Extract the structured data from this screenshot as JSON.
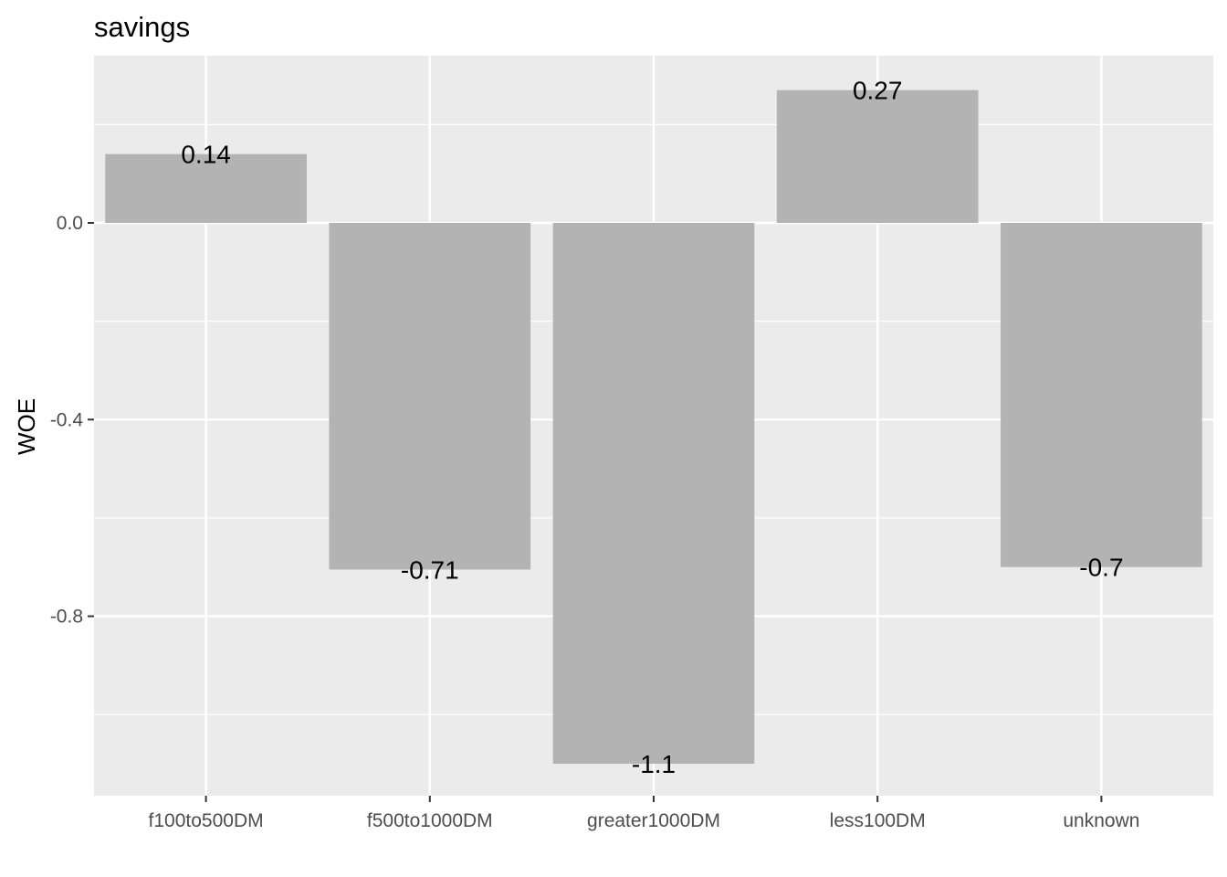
{
  "chart_data": {
    "type": "bar",
    "title": "savings",
    "xlabel": "",
    "ylabel": "WOE",
    "categories": [
      "f100to500DM",
      "f500to1000DM",
      "greater1000DM",
      "less100DM",
      "unknown"
    ],
    "values": [
      0.14,
      -0.705,
      -1.1,
      0.27,
      -0.7
    ],
    "value_labels": [
      "0.14",
      "-0.71",
      "-1.1",
      "0.27",
      "-0.7"
    ],
    "ylim": [
      -1.165,
      0.34
    ],
    "yticks": [
      0.0,
      -0.4,
      -0.8
    ],
    "ytick_labels": [
      "0.0",
      "-0.4",
      "-0.8"
    ],
    "grid": true,
    "colors": {
      "panel": "#ebebeb",
      "bar": "#b3b3b3",
      "grid": "#ffffff",
      "tick": "#333333"
    }
  }
}
